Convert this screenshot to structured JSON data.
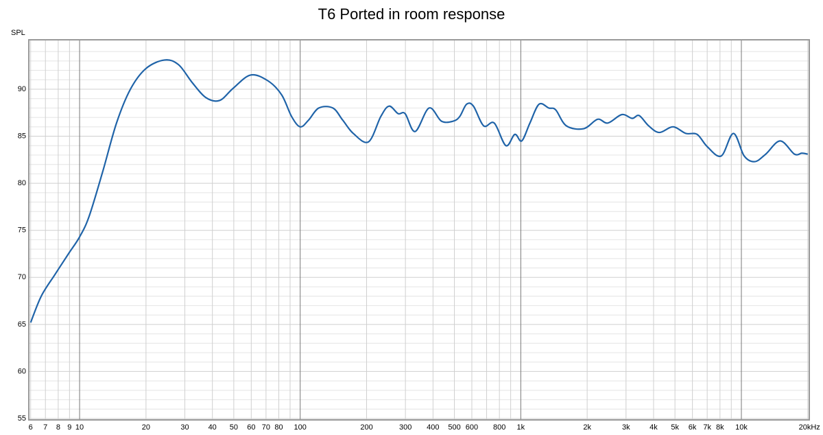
{
  "chart_data": {
    "type": "line",
    "title": "T6 Ported in room response",
    "ylabel": "SPL",
    "xscale": "log",
    "grid": true,
    "xlim": [
      6,
      20000
    ],
    "ylim": [
      55,
      95
    ],
    "yticks": [
      55,
      60,
      65,
      70,
      75,
      80,
      85,
      90
    ],
    "xticks": [
      6,
      7,
      8,
      9,
      10,
      20,
      30,
      40,
      50,
      60,
      70,
      80,
      100,
      200,
      300,
      400,
      500,
      600,
      800,
      {
        "value": 1000,
        "label": "1k"
      },
      {
        "value": 2000,
        "label": "2k"
      },
      {
        "value": 3000,
        "label": "3k"
      },
      {
        "value": 4000,
        "label": "4k"
      },
      {
        "value": 5000,
        "label": "5k"
      },
      {
        "value": 6000,
        "label": "6k"
      },
      {
        "value": 7000,
        "label": "7k"
      },
      {
        "value": 8000,
        "label": "8k"
      },
      {
        "value": 10000,
        "label": "10k"
      },
      {
        "value": 20000,
        "label": "20kHz"
      }
    ],
    "xgrid": [
      6,
      7,
      8,
      9,
      10,
      20,
      30,
      40,
      50,
      60,
      70,
      80,
      90,
      100,
      200,
      300,
      400,
      500,
      600,
      700,
      800,
      900,
      1000,
      2000,
      3000,
      4000,
      5000,
      6000,
      7000,
      8000,
      9000,
      10000,
      20000
    ],
    "ygrid": [
      56,
      57,
      58,
      59,
      61,
      62,
      63,
      64,
      66,
      67,
      68,
      69,
      71,
      72,
      73,
      74,
      76,
      77,
      78,
      79,
      81,
      82,
      83,
      84,
      86,
      87,
      88,
      89,
      91,
      92,
      93,
      94
    ],
    "series": [
      {
        "color": "#1f63a8",
        "x": [
          6,
          6.7,
          7.73,
          8.9,
          10,
          11.05,
          12.75,
          14.7,
          17,
          20,
          24.3,
          28.1,
          32.4,
          37.4,
          43.1,
          49.7,
          59.5,
          71.3,
          82.4,
          91.4,
          100,
          109,
          121.5,
          140.6,
          156,
          174,
          204,
          232,
          253,
          278,
          299,
          332,
          384,
          437,
          494,
          529,
          568,
          610,
          679,
          758,
          856,
          940,
          1010,
          1100,
          1210,
          1340,
          1440,
          1610,
          1930,
          2230,
          2480,
          2870,
          3200,
          3440,
          3800,
          4250,
          4900,
          5600,
          6300,
          7000,
          8100,
          9200,
          10300,
          11500,
          12900,
          15000,
          17400,
          18800,
          20000
        ],
        "values": [
          65.2,
          68.0,
          70.3,
          72.5,
          74.3,
          76.5,
          81.3,
          86.4,
          90.0,
          92.2,
          93.1,
          92.6,
          90.7,
          89.1,
          88.8,
          90.1,
          91.5,
          90.9,
          89.4,
          87.1,
          86.0,
          86.7,
          88.0,
          88.0,
          86.7,
          85.3,
          84.4,
          87.1,
          88.2,
          87.4,
          87.4,
          85.5,
          88.0,
          86.6,
          86.6,
          87.1,
          88.4,
          88.2,
          86.1,
          86.4,
          84.0,
          85.2,
          84.5,
          86.4,
          88.4,
          88.0,
          87.8,
          86.1,
          85.8,
          86.8,
          86.4,
          87.3,
          86.9,
          87.2,
          86.1,
          85.4,
          86.0,
          85.3,
          85.2,
          83.9,
          82.9,
          85.3,
          82.9,
          82.3,
          83.1,
          84.5,
          83.1,
          83.2,
          83.1
        ]
      }
    ]
  }
}
